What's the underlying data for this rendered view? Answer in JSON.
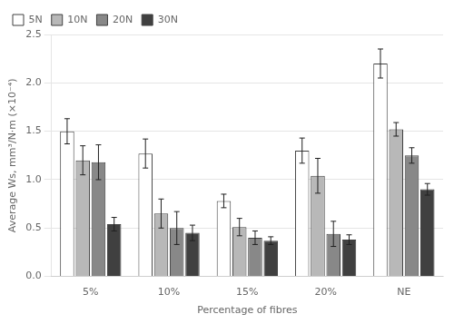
{
  "chart_data": {
    "type": "bar",
    "categories": [
      "5%",
      "10%",
      "15%",
      "20%",
      "NE"
    ],
    "series": [
      {
        "name": "5N",
        "color": "#ffffff",
        "values": [
          1.5,
          1.27,
          0.78,
          1.3,
          2.2
        ],
        "errors": [
          0.13,
          0.15,
          0.07,
          0.13,
          0.15
        ]
      },
      {
        "name": "10N",
        "color": "#b8b8b8",
        "values": [
          1.2,
          0.65,
          0.51,
          1.04,
          1.52
        ],
        "errors": [
          0.15,
          0.15,
          0.09,
          0.18,
          0.07
        ]
      },
      {
        "name": "20N",
        "color": "#888888",
        "values": [
          1.18,
          0.5,
          0.4,
          0.44,
          1.25
        ],
        "errors": [
          0.18,
          0.17,
          0.07,
          0.13,
          0.08
        ]
      },
      {
        "name": "30N",
        "color": "#404040",
        "values": [
          0.54,
          0.45,
          0.37,
          0.38,
          0.9
        ],
        "errors": [
          0.07,
          0.08,
          0.04,
          0.05,
          0.06
        ]
      }
    ],
    "xlabel": "Percentage of fibres",
    "ylabel": "Average Ws, mm³/N·m (×10⁻⁴)",
    "ylim": [
      0.0,
      2.5
    ],
    "yticks": [
      {
        "value": 0,
        "label": "0.0"
      },
      0.5,
      {
        "value": 1,
        "label": "1.0"
      },
      1.5,
      {
        "value": 2,
        "label": "2.0"
      },
      2.5
    ],
    "grid": true,
    "legend": "upper left"
  }
}
